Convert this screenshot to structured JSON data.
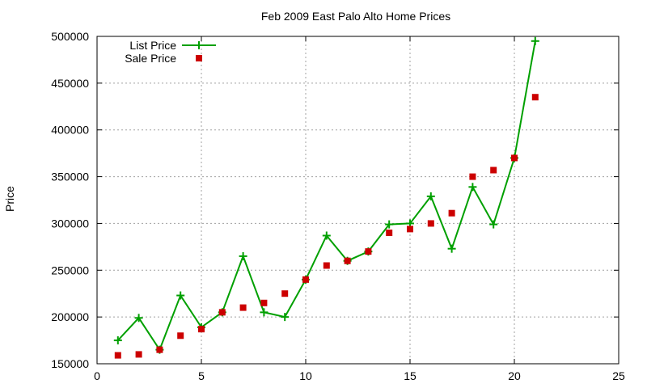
{
  "chart_data": {
    "type": "line",
    "title": "Feb 2009 East Palo Alto Home Prices",
    "xlabel": "",
    "ylabel": "Price",
    "xlim": [
      0,
      25
    ],
    "ylim": [
      150000,
      500000
    ],
    "xticks": [
      0,
      5,
      10,
      15,
      20,
      25
    ],
    "yticks": [
      150000,
      200000,
      250000,
      300000,
      350000,
      400000,
      450000,
      500000
    ],
    "grid": true,
    "legend_position": "top-left",
    "x": [
      1,
      2,
      3,
      4,
      5,
      6,
      7,
      8,
      9,
      10,
      11,
      12,
      13,
      14,
      15,
      16,
      17,
      18,
      19,
      20,
      21
    ],
    "series": [
      {
        "name": "List Price",
        "style": "linespoints",
        "color": "#00a000",
        "marker": "plus",
        "values": [
          175000,
          199000,
          165000,
          223000,
          189000,
          205000,
          265000,
          205000,
          200000,
          240000,
          287000,
          260000,
          270000,
          299000,
          300000,
          329000,
          273000,
          339000,
          299000,
          370000,
          495000
        ]
      },
      {
        "name": "Sale Price",
        "style": "points",
        "color": "#cc0000",
        "marker": "square",
        "values": [
          159000,
          160000,
          165000,
          180000,
          187000,
          205000,
          210000,
          215000,
          225000,
          240000,
          255000,
          260000,
          270000,
          290000,
          294000,
          300000,
          311000,
          350000,
          357000,
          370000,
          435000
        ]
      }
    ]
  }
}
